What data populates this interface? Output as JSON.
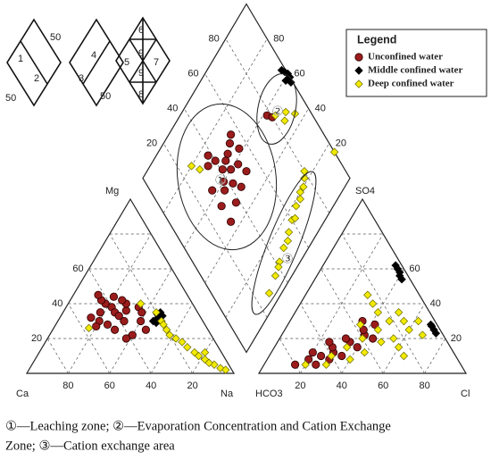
{
  "chart_data": {
    "type": "piper",
    "grid": true,
    "cation": {
      "labels": {
        "left": "Ca",
        "right": "Na",
        "top": "Mg"
      },
      "base_ticks": [
        80,
        60,
        40,
        20
      ],
      "side_ticks": [
        20,
        40,
        60
      ]
    },
    "anion": {
      "labels": {
        "left": "HCO3",
        "right": "Cl",
        "top": "SO4"
      },
      "base_ticks": [
        20,
        40,
        60,
        80
      ],
      "side_ticks": [
        20,
        40,
        60
      ]
    },
    "diamond": {
      "left_ticks": [
        20,
        40,
        60,
        80
      ],
      "right_ticks": [
        20,
        40,
        60,
        80
      ]
    },
    "legend": {
      "title": "Legend",
      "position": "upper right"
    },
    "zones": [
      "①",
      "②",
      "③"
    ],
    "series": [
      {
        "name": "Unconfined water",
        "color": "#9b1c1c",
        "stroke": "#2a0000",
        "marker": "circle",
        "cation": {
          "mg": [
            40,
            38,
            35,
            42,
            30,
            33,
            45,
            36,
            28,
            40,
            32,
            25,
            38,
            44,
            30,
            35,
            42,
            27,
            22,
            20,
            30,
            25,
            35
          ],
          "na": [
            18,
            22,
            25,
            15,
            20,
            28,
            12,
            30,
            25,
            28,
            15,
            30,
            35,
            20,
            32,
            18,
            25,
            20,
            40,
            38,
            40,
            45,
            38
          ]
        },
        "anion": {
          "so4": [
            5,
            8,
            10,
            12,
            15,
            18,
            20,
            10,
            22,
            25,
            15,
            8,
            28,
            12,
            20,
            5,
            30,
            18
          ],
          "cl": [
            15,
            20,
            25,
            30,
            28,
            35,
            32,
            35,
            40,
            38,
            40,
            30,
            42,
            20,
            45,
            25,
            35,
            25
          ]
        },
        "diamond": {
          "camg": [
            64,
            60,
            70,
            58,
            66,
            72,
            55,
            62,
            68,
            75,
            57,
            50,
            63,
            54,
            70,
            60,
            48,
            65,
            52,
            45,
            58,
            55
          ],
          "so4cl": [
            41,
            45,
            40,
            50,
            48,
            35,
            42,
            55,
            52,
            38,
            36,
            45,
            30,
            30,
            55,
            38,
            38,
            45,
            52,
            30,
            78,
            80
          ]
        }
      },
      {
        "name": "Middle confined water",
        "color": "#000000",
        "stroke": "#000000",
        "marker": "diamond",
        "cation": {
          "mg": [
            32,
            30,
            34,
            31,
            33,
            29,
            30,
            35
          ],
          "na": [
            48,
            50,
            46,
            47,
            49,
            48,
            46,
            47
          ]
        },
        "anion": {
          "so4": [
            60,
            58,
            56,
            54,
            62,
            27,
            25,
            23,
            28
          ],
          "cl": [
            37,
            39,
            40,
            42,
            35,
            70,
            72,
            74,
            69
          ]
        },
        "diamond": {
          "camg": [
            60,
            58,
            62,
            56,
            64,
            59
          ],
          "so4cl": [
            100,
            100,
            99,
            99,
            98,
            97
          ]
        }
      },
      {
        "name": "Deep confined water",
        "color": "#f2ea00",
        "stroke": "#6b6b00",
        "marker": "diamond",
        "cation": {
          "mg": [
            30,
            25,
            20,
            15,
            10,
            5,
            3,
            8,
            12,
            18,
            22,
            28,
            35,
            40,
            6,
            2,
            12,
            26
          ],
          "na": [
            50,
            55,
            62,
            70,
            78,
            88,
            92,
            82,
            75,
            66,
            58,
            52,
            45,
            35,
            85,
            95,
            80,
            17
          ]
        },
        "anion": {
          "so4": [
            5,
            10,
            15,
            20,
            25,
            30,
            35,
            40,
            45,
            20,
            15,
            10,
            25,
            30,
            18,
            8,
            12,
            22,
            30,
            35,
            5,
            28
          ],
          "cl": [
            20,
            30,
            35,
            40,
            45,
            48,
            40,
            35,
            30,
            55,
            60,
            65,
            60,
            55,
            50,
            40,
            45,
            68,
            62,
            50,
            30,
            35
          ]
        },
        "diamond": {
          "camg": [
            22,
            20,
            18,
            16,
            14,
            12,
            10,
            8,
            6,
            18,
            15,
            20,
            12,
            9,
            24,
            54,
            50,
            48,
            45,
            15,
            80,
            75
          ],
          "so4cl": [
            78,
            72,
            66,
            60,
            55,
            48,
            42,
            36,
            28,
            70,
            62,
            75,
            52,
            40,
            80,
            82,
            88,
            85,
            92,
            100,
            27,
            30
          ]
        }
      }
    ]
  },
  "inset": {
    "labels": [
      "50",
      "1",
      "2",
      "50",
      "4",
      "3",
      "50",
      "6",
      "5",
      "9",
      "7",
      "9",
      "8"
    ]
  },
  "caption": {
    "lines": [
      "①—Leaching zone; ②—Evaporation Concentration and Cation Exchange",
      "Zone; ③—Cation exchange area"
    ]
  }
}
